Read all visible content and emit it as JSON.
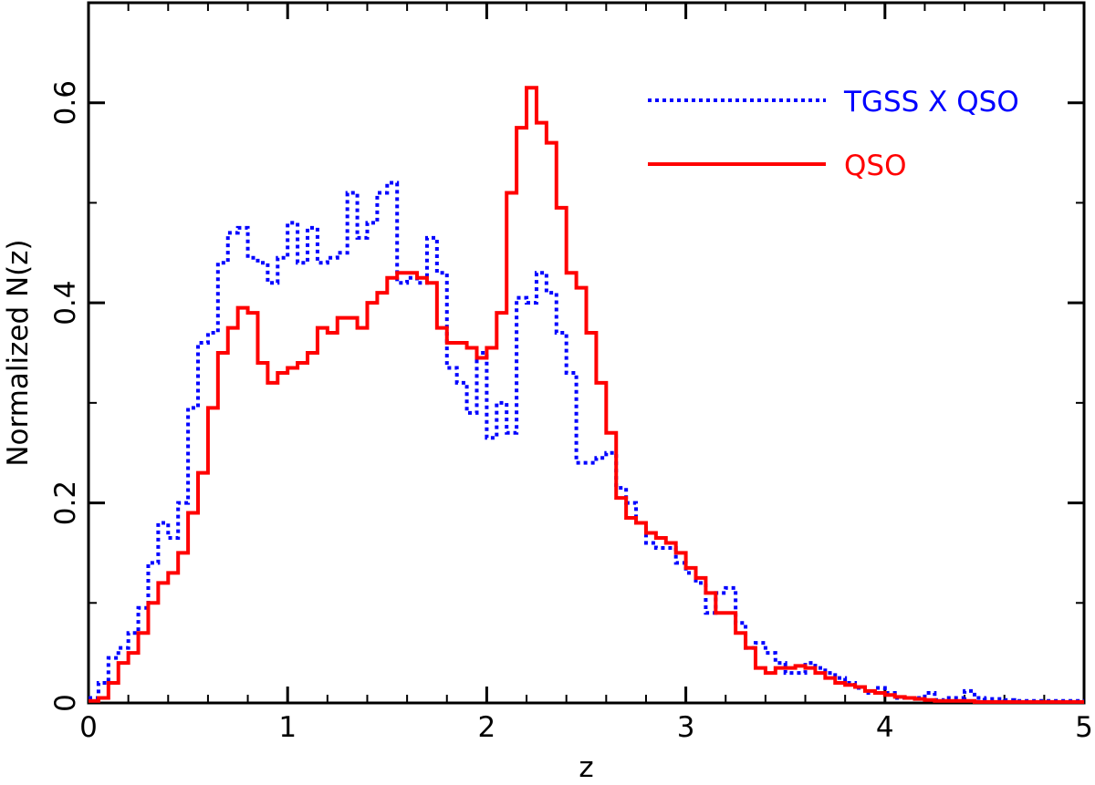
{
  "chart_data": {
    "type": "line",
    "step": true,
    "xlabel": "z",
    "ylabel": "Normalized N(z)",
    "xlim": [
      0,
      5
    ],
    "ylim": [
      0,
      0.7
    ],
    "xticks": [
      0,
      1,
      2,
      3,
      4,
      5
    ],
    "xtick_labels": [
      "0",
      "1",
      "2",
      "3",
      "4",
      "5"
    ],
    "yticks": [
      0,
      0.2,
      0.4,
      0.6
    ],
    "ytick_labels": [
      "0",
      "0.2",
      "0.4",
      "0.6"
    ],
    "grid": false,
    "legend_position": "top-right",
    "series": [
      {
        "name": "TGSS X QSO",
        "color": "#0000ff",
        "style": "dotted",
        "x": [
          0.0,
          0.05,
          0.1,
          0.15,
          0.2,
          0.25,
          0.3,
          0.35,
          0.4,
          0.45,
          0.5,
          0.55,
          0.6,
          0.65,
          0.7,
          0.75,
          0.8,
          0.85,
          0.9,
          0.95,
          1.0,
          1.05,
          1.1,
          1.15,
          1.2,
          1.25,
          1.3,
          1.35,
          1.4,
          1.45,
          1.5,
          1.55,
          1.6,
          1.65,
          1.7,
          1.75,
          1.8,
          1.85,
          1.9,
          1.95,
          2.0,
          2.05,
          2.1,
          2.15,
          2.2,
          2.25,
          2.3,
          2.35,
          2.4,
          2.45,
          2.5,
          2.55,
          2.6,
          2.65,
          2.7,
          2.75,
          2.8,
          2.85,
          2.9,
          2.95,
          3.0,
          3.05,
          3.1,
          3.15,
          3.2,
          3.25,
          3.3,
          3.35,
          3.4,
          3.45,
          3.5,
          3.55,
          3.6,
          3.65,
          3.7,
          3.75,
          3.8,
          3.85,
          3.9,
          3.95,
          4.0,
          4.05,
          4.1,
          4.15,
          4.2,
          4.25,
          4.3,
          4.35,
          4.4,
          4.45,
          4.5,
          4.55,
          4.6,
          4.65,
          4.7,
          4.75,
          4.8,
          4.85,
          4.9,
          4.95
        ],
        "values": [
          0.005,
          0.02,
          0.045,
          0.055,
          0.07,
          0.095,
          0.14,
          0.18,
          0.165,
          0.2,
          0.295,
          0.36,
          0.37,
          0.44,
          0.47,
          0.475,
          0.445,
          0.44,
          0.42,
          0.445,
          0.48,
          0.44,
          0.475,
          0.44,
          0.445,
          0.45,
          0.51,
          0.465,
          0.48,
          0.51,
          0.52,
          0.42,
          0.425,
          0.42,
          0.465,
          0.43,
          0.335,
          0.32,
          0.29,
          0.35,
          0.265,
          0.3,
          0.27,
          0.405,
          0.4,
          0.43,
          0.41,
          0.37,
          0.33,
          0.24,
          0.24,
          0.245,
          0.25,
          0.215,
          0.2,
          0.18,
          0.16,
          0.155,
          0.155,
          0.14,
          0.13,
          0.12,
          0.09,
          0.11,
          0.115,
          0.08,
          0.055,
          0.06,
          0.05,
          0.04,
          0.03,
          0.03,
          0.04,
          0.035,
          0.03,
          0.025,
          0.02,
          0.015,
          0.01,
          0.015,
          0.01,
          0.005,
          0.005,
          0.005,
          0.01,
          0.003,
          0.005,
          0.005,
          0.012,
          0.005,
          0.004,
          0.004,
          0.003,
          0.002,
          0.002,
          0.002,
          0.002,
          0.002,
          0.002,
          0.002
        ]
      },
      {
        "name": "QSO",
        "color": "#ff0000",
        "style": "solid",
        "x": [
          0.0,
          0.05,
          0.1,
          0.15,
          0.2,
          0.25,
          0.3,
          0.35,
          0.4,
          0.45,
          0.5,
          0.55,
          0.6,
          0.65,
          0.7,
          0.75,
          0.8,
          0.85,
          0.9,
          0.95,
          1.0,
          1.05,
          1.1,
          1.15,
          1.2,
          1.25,
          1.3,
          1.35,
          1.4,
          1.45,
          1.5,
          1.55,
          1.6,
          1.65,
          1.7,
          1.75,
          1.8,
          1.85,
          1.9,
          1.95,
          2.0,
          2.05,
          2.1,
          2.15,
          2.2,
          2.25,
          2.3,
          2.35,
          2.4,
          2.45,
          2.5,
          2.55,
          2.6,
          2.65,
          2.7,
          2.75,
          2.8,
          2.85,
          2.9,
          2.95,
          3.0,
          3.05,
          3.1,
          3.15,
          3.2,
          3.25,
          3.3,
          3.35,
          3.4,
          3.45,
          3.5,
          3.55,
          3.6,
          3.65,
          3.7,
          3.75,
          3.8,
          3.85,
          3.9,
          3.95,
          4.0,
          4.05,
          4.1,
          4.15,
          4.2,
          4.25,
          4.3,
          4.35,
          4.4,
          4.45,
          4.5,
          4.55,
          4.6,
          4.65,
          4.7,
          4.75,
          4.8,
          4.85,
          4.9,
          4.95
        ],
        "values": [
          0.002,
          0.005,
          0.02,
          0.04,
          0.05,
          0.07,
          0.1,
          0.12,
          0.13,
          0.15,
          0.19,
          0.23,
          0.295,
          0.35,
          0.375,
          0.395,
          0.39,
          0.34,
          0.32,
          0.33,
          0.335,
          0.34,
          0.35,
          0.375,
          0.37,
          0.385,
          0.385,
          0.375,
          0.4,
          0.41,
          0.425,
          0.43,
          0.43,
          0.425,
          0.42,
          0.375,
          0.36,
          0.36,
          0.355,
          0.345,
          0.355,
          0.39,
          0.51,
          0.575,
          0.615,
          0.58,
          0.56,
          0.495,
          0.43,
          0.415,
          0.37,
          0.32,
          0.27,
          0.205,
          0.185,
          0.18,
          0.17,
          0.165,
          0.16,
          0.15,
          0.135,
          0.125,
          0.11,
          0.09,
          0.09,
          0.07,
          0.055,
          0.035,
          0.03,
          0.035,
          0.035,
          0.037,
          0.035,
          0.03,
          0.025,
          0.02,
          0.018,
          0.016,
          0.012,
          0.01,
          0.008,
          0.006,
          0.005,
          0.004,
          0.003,
          0.002,
          0.002,
          0.002,
          0.002,
          0.001,
          0.001,
          0.001,
          0.001,
          0.001,
          0.001,
          0.001,
          0.001,
          0.001,
          0.001,
          0.001
        ]
      }
    ]
  }
}
